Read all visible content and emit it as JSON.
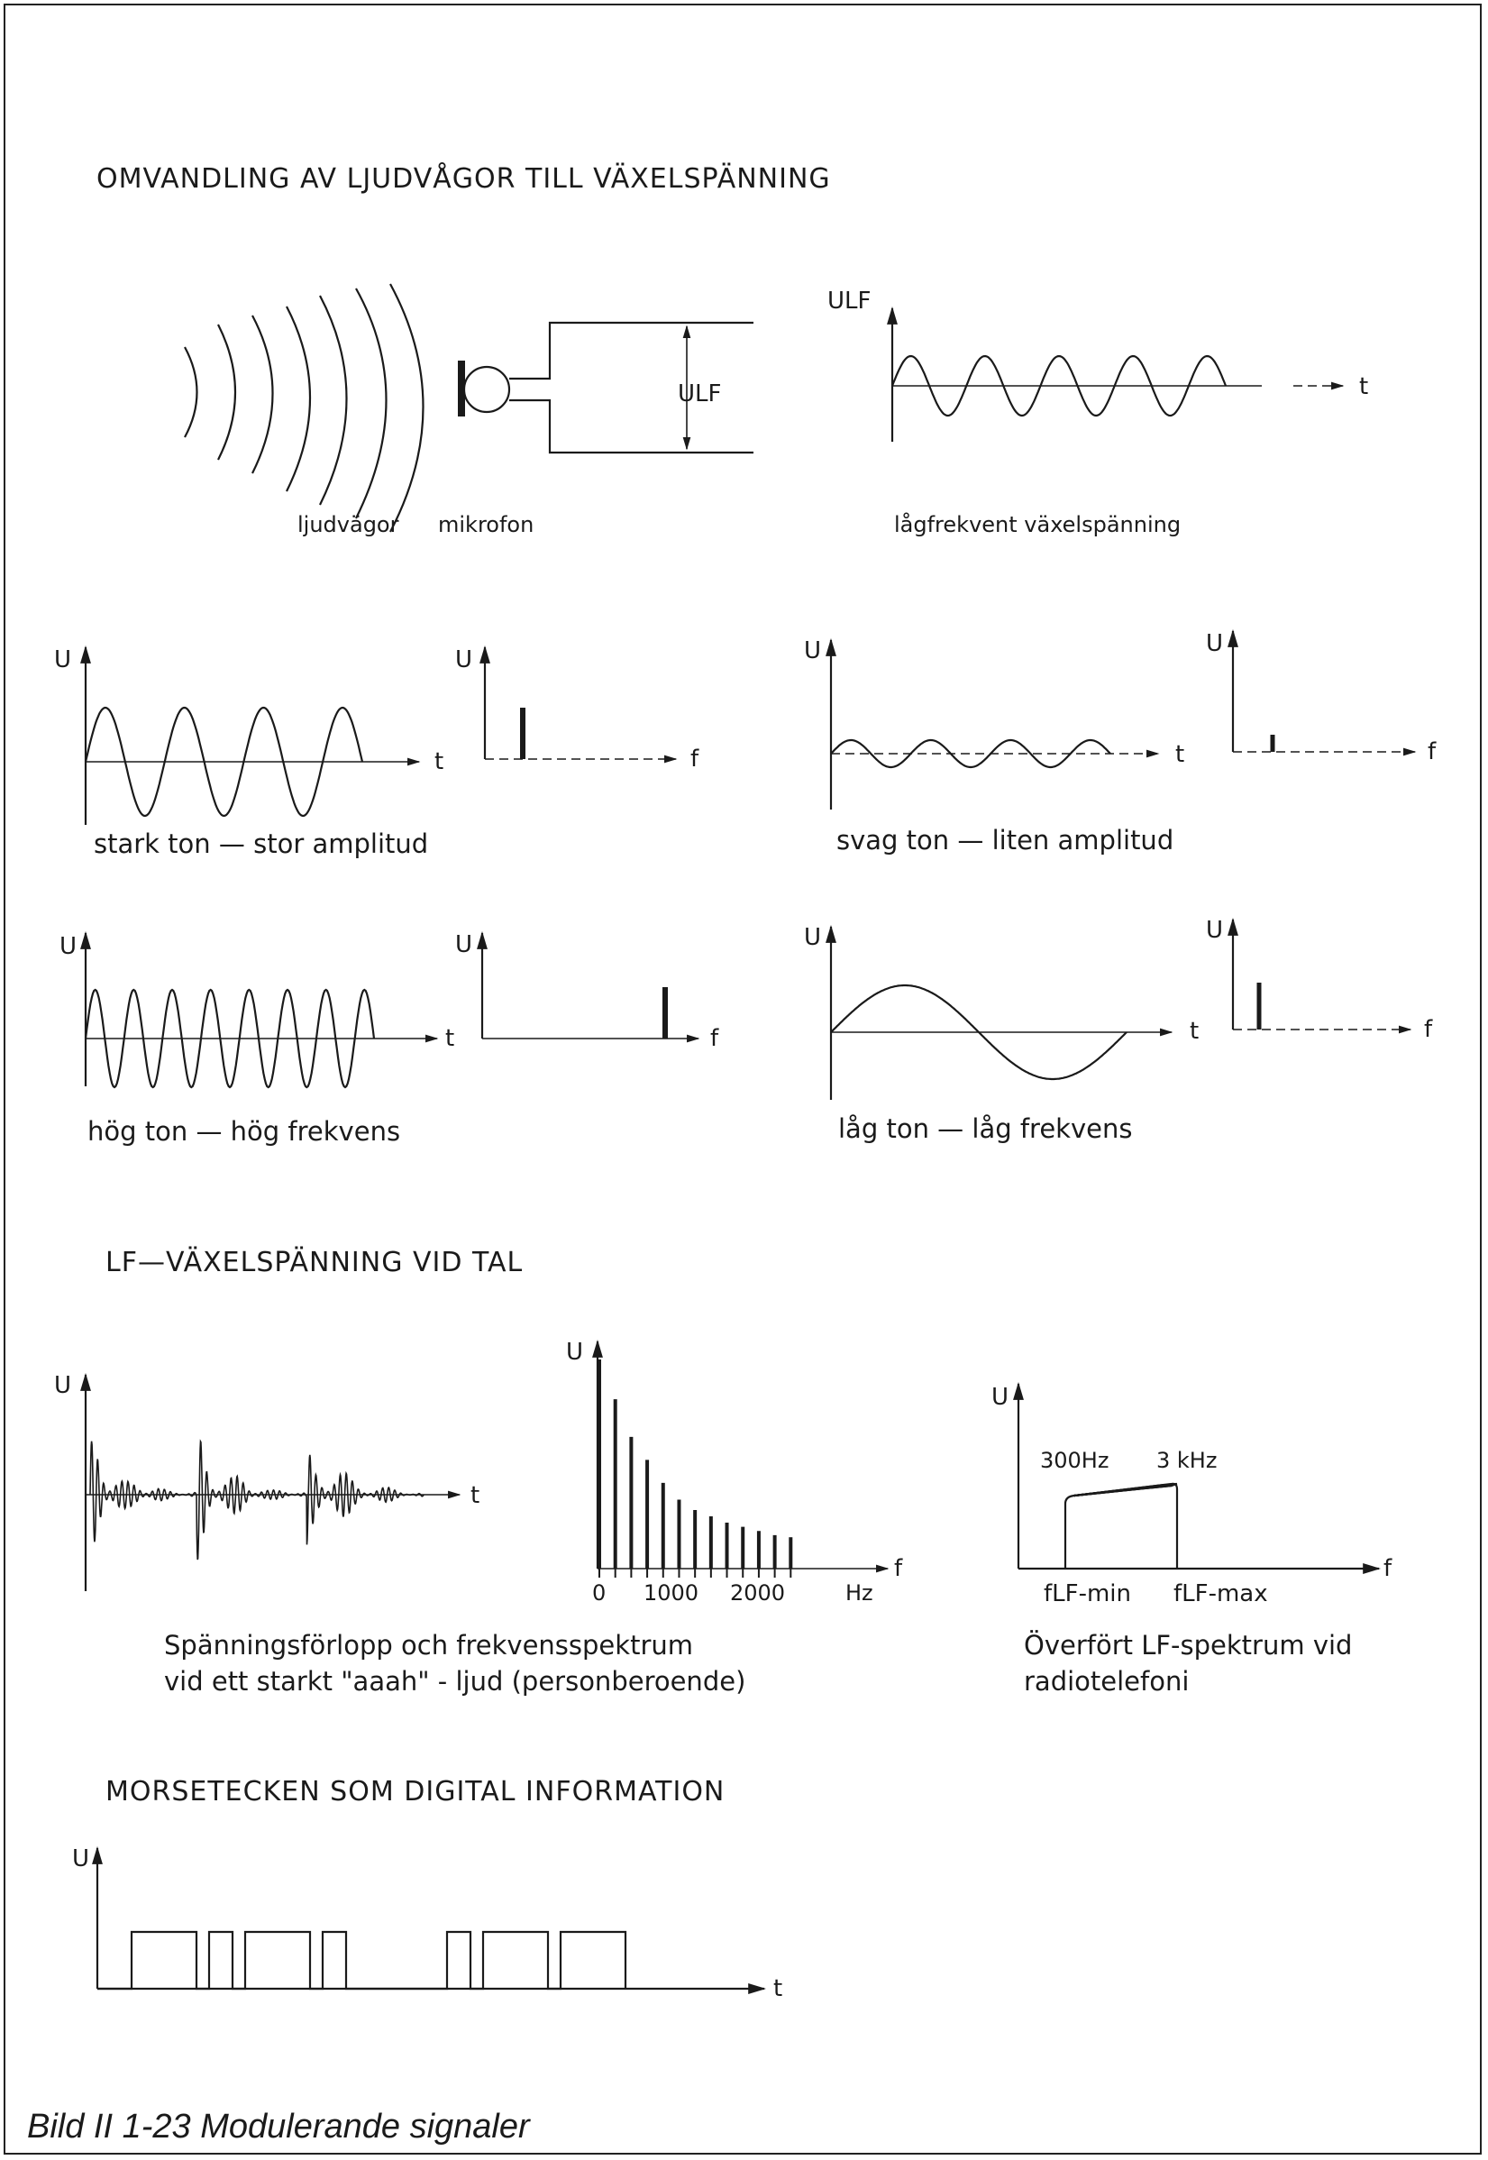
{
  "section1": {
    "heading": "OMVANDLING AV LJUDVÅGOR TILL VÄXELSPÄNNING",
    "label_waves": "ljudvägor",
    "label_mic": "mikrofon",
    "label_ulf": "ULF",
    "graph_ylabel": "ULF",
    "graph_xlabel": "t",
    "label_signal": "lågfrekvent växelspänning"
  },
  "panels": [
    {
      "key": "stark",
      "caption": "stark ton — stor amplitud",
      "ylabel": "U",
      "xlabel_time": "t",
      "xlabel_freq": "f",
      "relative_amplitude": 1.0,
      "cycles": 3
    },
    {
      "key": "svag",
      "caption": "svag ton — liten amplitud",
      "ylabel": "U",
      "xlabel_time": "t",
      "xlabel_freq": "f",
      "relative_amplitude": 0.25,
      "cycles": 3
    },
    {
      "key": "hog",
      "caption": "hög ton — hög frekvens",
      "ylabel": "U",
      "xlabel_time": "t",
      "xlabel_freq": "f",
      "relative_amplitude": 1.0,
      "cycles": 7
    },
    {
      "key": "lag",
      "caption": "låg ton — låg frekvens",
      "ylabel": "U",
      "xlabel_time": "t",
      "xlabel_freq": "f",
      "relative_amplitude": 1.0,
      "cycles": 1
    }
  ],
  "section2": {
    "heading": "LF—VÄXELSPÄNNING VID TAL",
    "speech_ylabel": "U",
    "speech_xlabel": "t",
    "spectrum_ylabel": "U",
    "spectrum_xlabel": "f",
    "spectrum_unit": "Hz",
    "spectrum_ticks": [
      "0",
      "1000",
      "2000"
    ],
    "caption_line1": "Spänningsförlopp och frekvensspektrum",
    "caption_line2": "vid ett starkt \"aaah\" - ljud  (personberoende)",
    "band_ylabel": "U",
    "band_xlabel": "f",
    "band_low_label": "300Hz",
    "band_high_label": "3 kHz",
    "band_fmin": "fLF-min",
    "band_fmax": "fLF-max",
    "band_caption_line1": "Överfört LF-spektrum vid",
    "band_caption_line2": "radiotelefoni"
  },
  "chart_data": {
    "type": "bar",
    "x": [
      0,
      200,
      400,
      600,
      800,
      1000,
      1200,
      1400,
      1600,
      1800,
      2000,
      2200,
      2400
    ],
    "values": [
      1.0,
      0.81,
      0.63,
      0.52,
      0.41,
      0.33,
      0.28,
      0.25,
      0.22,
      0.2,
      0.18,
      0.16,
      0.15
    ],
    "xlabel": "f",
    "ylabel": "U",
    "x_ticks": [
      "0",
      "1000",
      "2000"
    ],
    "unit": "Hz"
  },
  "section3": {
    "heading": "MORSETECKEN SOM DIGITAL INFORMATION",
    "ylabel": "U",
    "xlabel": "t",
    "pulses": [
      "long",
      "short",
      "long",
      "short",
      "short",
      "long",
      "long"
    ]
  },
  "figure_caption": "Bild II 1-23  Modulerande signaler"
}
